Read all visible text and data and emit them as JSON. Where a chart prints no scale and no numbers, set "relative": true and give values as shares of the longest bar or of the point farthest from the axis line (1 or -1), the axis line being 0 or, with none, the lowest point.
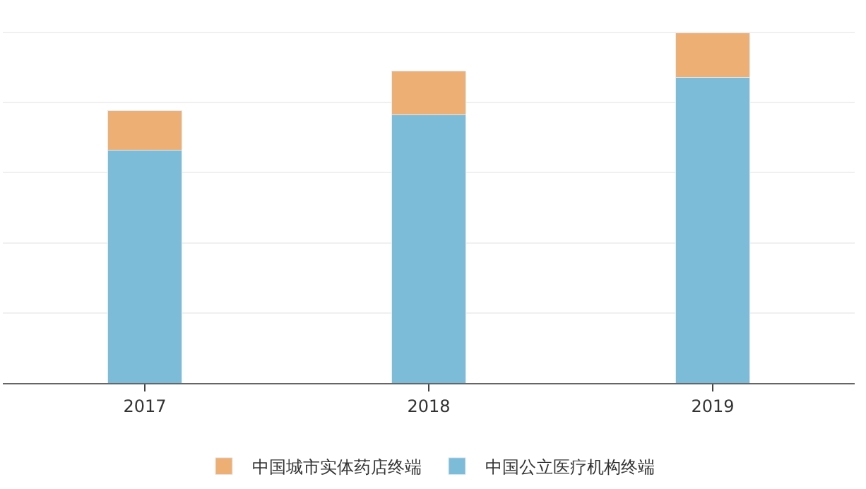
{
  "chart_data": {
    "type": "bar",
    "stacked": true,
    "relative": true,
    "categories": [
      "2017",
      "2018",
      "2019"
    ],
    "series": [
      {
        "name": "中国公立医疗机构终端",
        "color": "#7dbcd9",
        "values": [
          0.664,
          0.766,
          0.872
        ]
      },
      {
        "name": "中国城市实体药店终端",
        "color": "#eeaf74",
        "values": [
          0.113,
          0.124,
          0.128
        ]
      }
    ],
    "grid": "y",
    "legend": "bottom"
  }
}
